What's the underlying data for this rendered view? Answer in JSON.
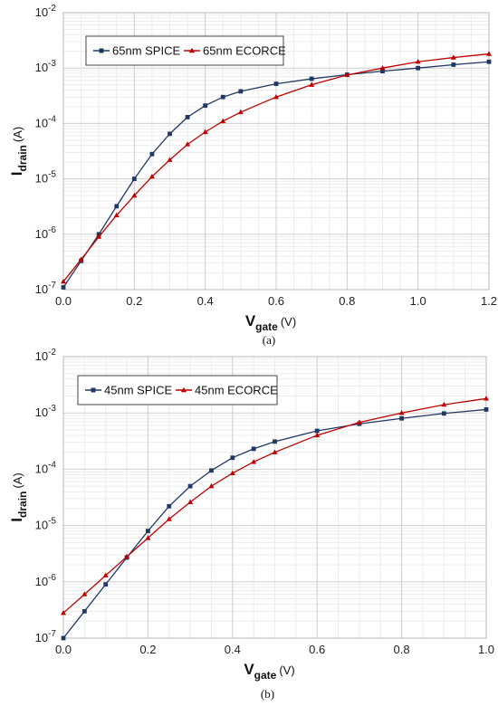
{
  "chart_data": [
    {
      "type": "line",
      "caption": "(a)",
      "xlabel": {
        "main": "V",
        "sub": "gate",
        "unit": "(V)"
      },
      "ylabel": {
        "main": "I",
        "sub": "drain",
        "unit": "(A)"
      },
      "xlim": [
        0,
        1.2
      ],
      "ylim": [
        1e-07,
        0.01
      ],
      "yscale": "log",
      "grid": true,
      "legend_placement": "top-left",
      "x_ticks": [
        "0.0",
        "0.2",
        "0.4",
        "0.6",
        "0.8",
        "1.0",
        "1.2"
      ],
      "y_ticks": [
        {
          "base": "10",
          "exp": "-7"
        },
        {
          "base": "10",
          "exp": "-6"
        },
        {
          "base": "10",
          "exp": "-5"
        },
        {
          "base": "10",
          "exp": "-4"
        },
        {
          "base": "10",
          "exp": "-3"
        },
        {
          "base": "10",
          "exp": "-2"
        }
      ],
      "series": [
        {
          "name": "65nm SPICE",
          "color": "#1f3864",
          "marker": "square",
          "x": [
            0.0,
            0.05,
            0.1,
            0.15,
            0.2,
            0.25,
            0.3,
            0.35,
            0.4,
            0.45,
            0.5,
            0.6,
            0.7,
            0.8,
            0.9,
            1.0,
            1.1,
            1.2
          ],
          "y": [
            1.1e-07,
            3.3e-07,
            1e-06,
            3.2e-06,
            1e-05,
            2.8e-05,
            6.5e-05,
            0.00013,
            0.00021,
            0.0003,
            0.00038,
            0.00052,
            0.00064,
            0.00076,
            0.00088,
            0.001,
            0.00115,
            0.0013
          ]
        },
        {
          "name": "65nm ECORCE",
          "color": "#c00000",
          "marker": "triangle",
          "x": [
            0.0,
            0.05,
            0.1,
            0.15,
            0.2,
            0.25,
            0.3,
            0.35,
            0.4,
            0.45,
            0.5,
            0.6,
            0.7,
            0.8,
            0.9,
            1.0,
            1.1,
            1.2
          ],
          "y": [
            1.4e-07,
            3.5e-07,
            9e-07,
            2.2e-06,
            5e-06,
            1.1e-05,
            2.2e-05,
            4.2e-05,
            7e-05,
            0.00011,
            0.00016,
            0.0003,
            0.0005,
            0.00075,
            0.001,
            0.0013,
            0.00155,
            0.0018
          ]
        }
      ]
    },
    {
      "type": "line",
      "caption": "(b)",
      "xlabel": {
        "main": "V",
        "sub": "gate",
        "unit": "(V)"
      },
      "ylabel": {
        "main": "I",
        "sub": "drain",
        "unit": "(A)"
      },
      "xlim": [
        0,
        1.0
      ],
      "ylim": [
        1e-07,
        0.01
      ],
      "yscale": "log",
      "grid": true,
      "legend_placement": "top-left",
      "x_ticks": [
        "0.0",
        "0.2",
        "0.4",
        "0.6",
        "0.8",
        "1.0"
      ],
      "y_ticks": [
        {
          "base": "10",
          "exp": "-7"
        },
        {
          "base": "10",
          "exp": "-6"
        },
        {
          "base": "10",
          "exp": "-5"
        },
        {
          "base": "10",
          "exp": "-4"
        },
        {
          "base": "10",
          "exp": "-3"
        },
        {
          "base": "10",
          "exp": "-2"
        }
      ],
      "series": [
        {
          "name": "45nm SPICE",
          "color": "#1f3864",
          "marker": "square",
          "x": [
            0.0,
            0.05,
            0.1,
            0.15,
            0.2,
            0.25,
            0.3,
            0.35,
            0.4,
            0.45,
            0.5,
            0.6,
            0.7,
            0.8,
            0.9,
            1.0
          ],
          "y": [
            1e-07,
            3e-07,
            9e-07,
            2.7e-06,
            8e-06,
            2.2e-05,
            5e-05,
            9.5e-05,
            0.00016,
            0.00023,
            0.00031,
            0.00048,
            0.00064,
            0.0008,
            0.00098,
            0.00115
          ]
        },
        {
          "name": "45nm ECORCE",
          "color": "#c00000",
          "marker": "triangle",
          "x": [
            0.0,
            0.05,
            0.1,
            0.15,
            0.2,
            0.25,
            0.3,
            0.35,
            0.4,
            0.45,
            0.5,
            0.6,
            0.7,
            0.8,
            0.9,
            1.0
          ],
          "y": [
            2.8e-07,
            6e-07,
            1.3e-06,
            2.8e-06,
            6e-06,
            1.3e-05,
            2.6e-05,
            5e-05,
            8.5e-05,
            0.000135,
            0.0002,
            0.0004,
            0.00068,
            0.001,
            0.0014,
            0.0018
          ]
        }
      ]
    }
  ]
}
